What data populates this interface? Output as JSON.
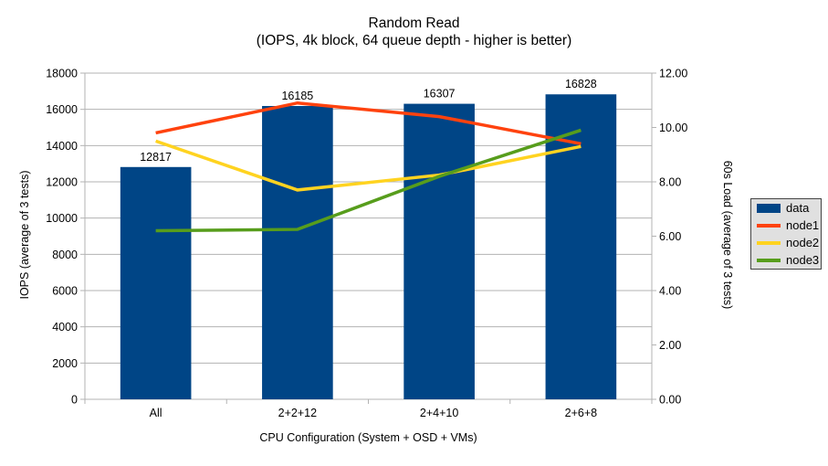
{
  "title": "Random Read",
  "subtitle": "(IOPS, 4k block, 64 queue depth - higher is better)",
  "chart_data": {
    "type": "bar",
    "combo": "bar+line",
    "title": "Random Read",
    "subtitle": "(IOPS, 4k block, 64 queue depth - higher is better)",
    "categories": [
      "All",
      "2+2+12",
      "2+4+10",
      "2+6+8"
    ],
    "xlabel": "CPU Configuration (System + OSD + VMs)",
    "left_axis": {
      "label": "IOPS (average of 3 tests)",
      "min": 0,
      "max": 18000,
      "step": 2000,
      "decimals": 0
    },
    "right_axis": {
      "label": "60s Load (average of 3 tests)",
      "min": 0,
      "max": 12,
      "step": 2,
      "decimals": 2
    },
    "series": [
      {
        "name": "data",
        "type": "bar",
        "axis": "left",
        "color": "#004586",
        "values": [
          12817,
          16185,
          16307,
          16828
        ],
        "value_labels": [
          "12817",
          "16185",
          "16307",
          "16828"
        ]
      },
      {
        "name": "node1",
        "type": "line",
        "axis": "right",
        "color": "#FF420E",
        "values": [
          9.8,
          10.9,
          10.4,
          9.4
        ]
      },
      {
        "name": "node2",
        "type": "line",
        "axis": "right",
        "color": "#FFD320",
        "values": [
          9.5,
          7.7,
          8.25,
          9.3
        ]
      },
      {
        "name": "node3",
        "type": "line",
        "axis": "right",
        "color": "#579D1C",
        "values": [
          6.2,
          6.25,
          8.2,
          9.9
        ]
      }
    ],
    "grid": true,
    "legend_position": "right",
    "legend": [
      {
        "label": "data",
        "swatch": "rect",
        "color": "#004586"
      },
      {
        "label": "node1",
        "swatch": "line",
        "color": "#FF420E"
      },
      {
        "label": "node2",
        "swatch": "line",
        "color": "#FFD320"
      },
      {
        "label": "node3",
        "swatch": "line",
        "color": "#579D1C"
      }
    ]
  },
  "colors": {
    "background": "#ffffff",
    "grid": "#b3b3b3",
    "axis": "#b3b3b3",
    "text": "#000000",
    "legend_bg": "#e0e0e0",
    "legend_border": "#444444"
  }
}
